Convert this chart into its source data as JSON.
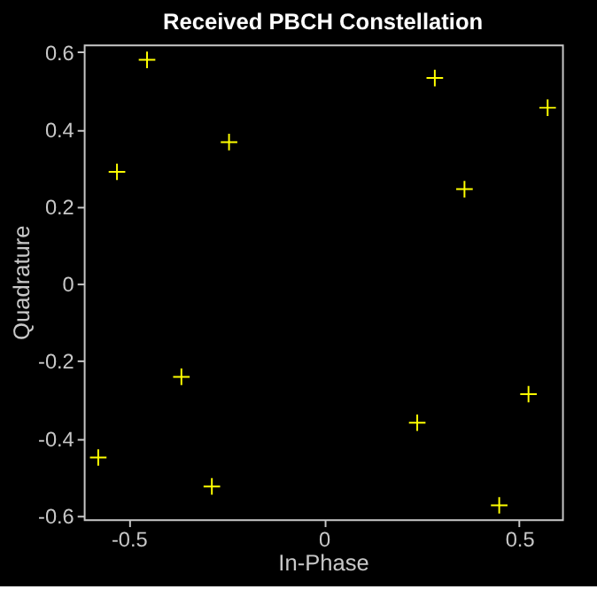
{
  "chart_data": {
    "type": "scatter",
    "title": "Received PBCH Constellation",
    "xlabel": "In-Phase",
    "ylabel": "Quadrature",
    "x": [
      -0.53,
      -0.453,
      -0.243,
      0.284,
      0.36,
      0.573,
      -0.578,
      -0.365,
      -0.287,
      0.239,
      0.524,
      0.449
    ],
    "series": [
      {
        "color": "#ffff00",
        "values": [
          0.29,
          0.58,
          0.367,
          0.533,
          0.245,
          0.456,
          -0.45,
          -0.241,
          -0.525,
          -0.36,
          -0.286,
          -0.574
        ]
      }
    ],
    "xlim": [
      -0.615,
      0.61
    ],
    "ylim": [
      -0.61,
      0.62
    ],
    "xticks": [
      -0.5,
      0,
      0.5
    ],
    "yticks": [
      -0.6,
      -0.4,
      -0.2,
      0,
      0.2,
      0.4,
      0.6
    ],
    "marker": "cross",
    "grid": false,
    "legend": false
  }
}
